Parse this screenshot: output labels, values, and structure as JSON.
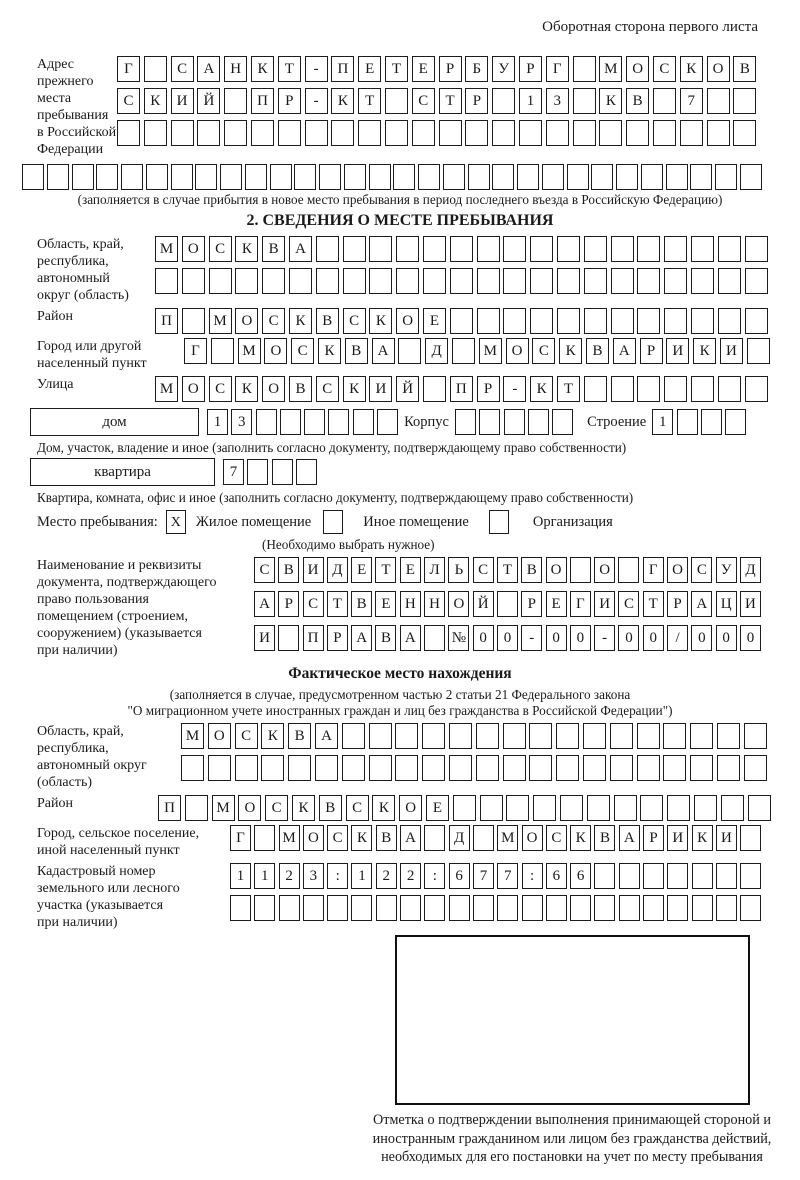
{
  "header": {
    "note": "Оборотная сторона первого листа"
  },
  "prev_address": {
    "label": "Адрес прежнего\nместа пребывания\nв Российской\nФедерации",
    "rows": [
      {
        "len": 24,
        "text": "Г САНКТ-ПЕТЕРБУРГ МОСКОВ"
      },
      {
        "len": 24,
        "text": "СКИЙ ПР-КТ СТР 13 КВ 7"
      },
      {
        "len": 24,
        "text": ""
      },
      {
        "len": 30,
        "text": ""
      }
    ],
    "note": "(заполняется в случае прибытия в новое место пребывания в период последнего въезда в Российскую Федерацию)"
  },
  "section2": {
    "title": "2. СВЕДЕНИЯ О МЕСТЕ ПРЕБЫВАНИЯ",
    "oblast": {
      "label": "Область, край,\nреспублика,\nавтономный\nокруг (область)",
      "rows": [
        {
          "len": 23,
          "text": "МОСКВА"
        },
        {
          "len": 23,
          "text": ""
        }
      ]
    },
    "raion": {
      "label": "Район",
      "rows": [
        {
          "len": 23,
          "text": "П МОСКВСКОЕ"
        }
      ]
    },
    "gorod": {
      "label": "Город или другой\nнаселенный пункт",
      "rows": [
        {
          "len": 22,
          "text": "Г МОСКВА Д МОСКВАРИКИ"
        }
      ]
    },
    "ulitsa": {
      "label": "Улица",
      "rows": [
        {
          "len": 23,
          "text": "МОСКОВСКИЙ ПР-КТ"
        }
      ]
    },
    "dom_row": {
      "dom_label": "дом",
      "dom_cells": {
        "len": 8,
        "text": "13"
      },
      "korpus_label": "Корпус",
      "korpus_cells": {
        "len": 5,
        "text": ""
      },
      "stroenie_label": "Строение",
      "stroenie_cells": {
        "len": 4,
        "text": "1"
      }
    },
    "dom_note": "Дом, участок, владение и иное (заполнить согласно документу, подтверждающему право собственности)",
    "kvartira_row": {
      "label": "квартира",
      "cells": {
        "len": 4,
        "text": "7"
      }
    },
    "kvartira_note": "Квартира, комната, офис и иное (заполнить согласно документу, подтверждающему право собственности)",
    "mesto": {
      "label": "Место пребывания:",
      "options": [
        {
          "label": "Жилое помещение",
          "mark": "X"
        },
        {
          "label": "Иное помещение",
          "mark": ""
        },
        {
          "label": "Организация",
          "mark": ""
        }
      ],
      "note": "(Необходимо выбрать нужное)"
    },
    "document": {
      "label": "Наименование и реквизиты\nдокумента, подтверждающего\nправо пользования\nпомещением (строением,\nсооружением) (указывается\nпри наличии)",
      "rows": [
        {
          "len": 21,
          "text": "СВИДЕТЕЛЬСТВО О ГОСУД"
        },
        {
          "len": 21,
          "text": "АРСТВЕННОЙ РЕГИСТРАЦИ"
        },
        {
          "len": 21,
          "text": "И ПРАВА №00-00-00/000"
        }
      ]
    }
  },
  "factual": {
    "title": "Фактическое место нахождения",
    "note1": "(заполняется в случае, предусмотренном частью 2 статьи 21 Федерального закона",
    "note2": "\"О миграционном учете иностранных граждан и лиц без гражданства в Российской Федерации\")",
    "oblast": {
      "label": "Область, край,\nреспублика,\nавтономный округ\n(область)",
      "rows": [
        {
          "len": 22,
          "text": "МОСКВА"
        },
        {
          "len": 22,
          "text": ""
        }
      ]
    },
    "raion": {
      "label": "Район",
      "rows": [
        {
          "len": 23,
          "text": "П МОСКВСКОЕ"
        }
      ]
    },
    "gorod": {
      "label": "Город, сельское поселение,\nиной населенный пункт",
      "rows": [
        {
          "len": 22,
          "text": "Г МОСКВА Д МОСКВАРИКИ"
        }
      ]
    },
    "kadastr": {
      "label": "Кадастровый номер\nземельного или лесного\nучастка (указывается\nпри наличии)",
      "rows": [
        {
          "len": 22,
          "text": "1123:122:677:66"
        },
        {
          "len": 22,
          "text": ""
        }
      ]
    },
    "stamp_caption": "Отметка о подтверждении выполнения принимающей стороной и иностранным гражданином или лицом без гражданства действий, необходимых для его постановки на учет по месту пребывания"
  }
}
